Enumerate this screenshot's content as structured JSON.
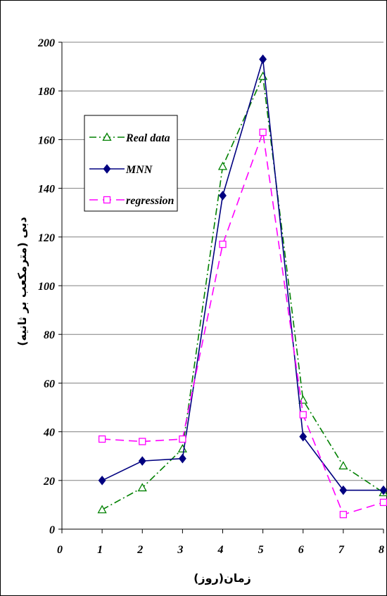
{
  "chart_data": {
    "type": "line",
    "title": "",
    "xlabel": "زمان(روز)",
    "ylabel": "دبی (مترمکعب بر ثانیه)",
    "x_ticks": [
      "0",
      "1",
      "2",
      "3",
      "4",
      "5",
      "6",
      "7",
      "8"
    ],
    "y_ticks": [
      "0",
      "20",
      "40",
      "60",
      "80",
      "100",
      "120",
      "140",
      "160",
      "180",
      "200"
    ],
    "xlim": [
      0,
      8
    ],
    "ylim": [
      0,
      200
    ],
    "grid": "horizontal",
    "legend_position": "upper-left",
    "x": [
      1,
      2,
      3,
      4,
      5,
      6,
      7,
      8
    ],
    "series": [
      {
        "name": "Real data",
        "color": "#008000",
        "marker": "triangle-open",
        "dash": "dash-dot",
        "values": [
          8,
          17,
          33,
          149,
          186,
          53,
          26,
          15
        ]
      },
      {
        "name": "MNN",
        "color": "#000080",
        "marker": "diamond-filled",
        "dash": "solid",
        "values": [
          20,
          28,
          29,
          137,
          193,
          38,
          16,
          16
        ]
      },
      {
        "name": "regression",
        "color": "#ff00ff",
        "marker": "square-open",
        "dash": "dash",
        "values": [
          37,
          36,
          37,
          117,
          163,
          47,
          6,
          11
        ]
      }
    ]
  }
}
